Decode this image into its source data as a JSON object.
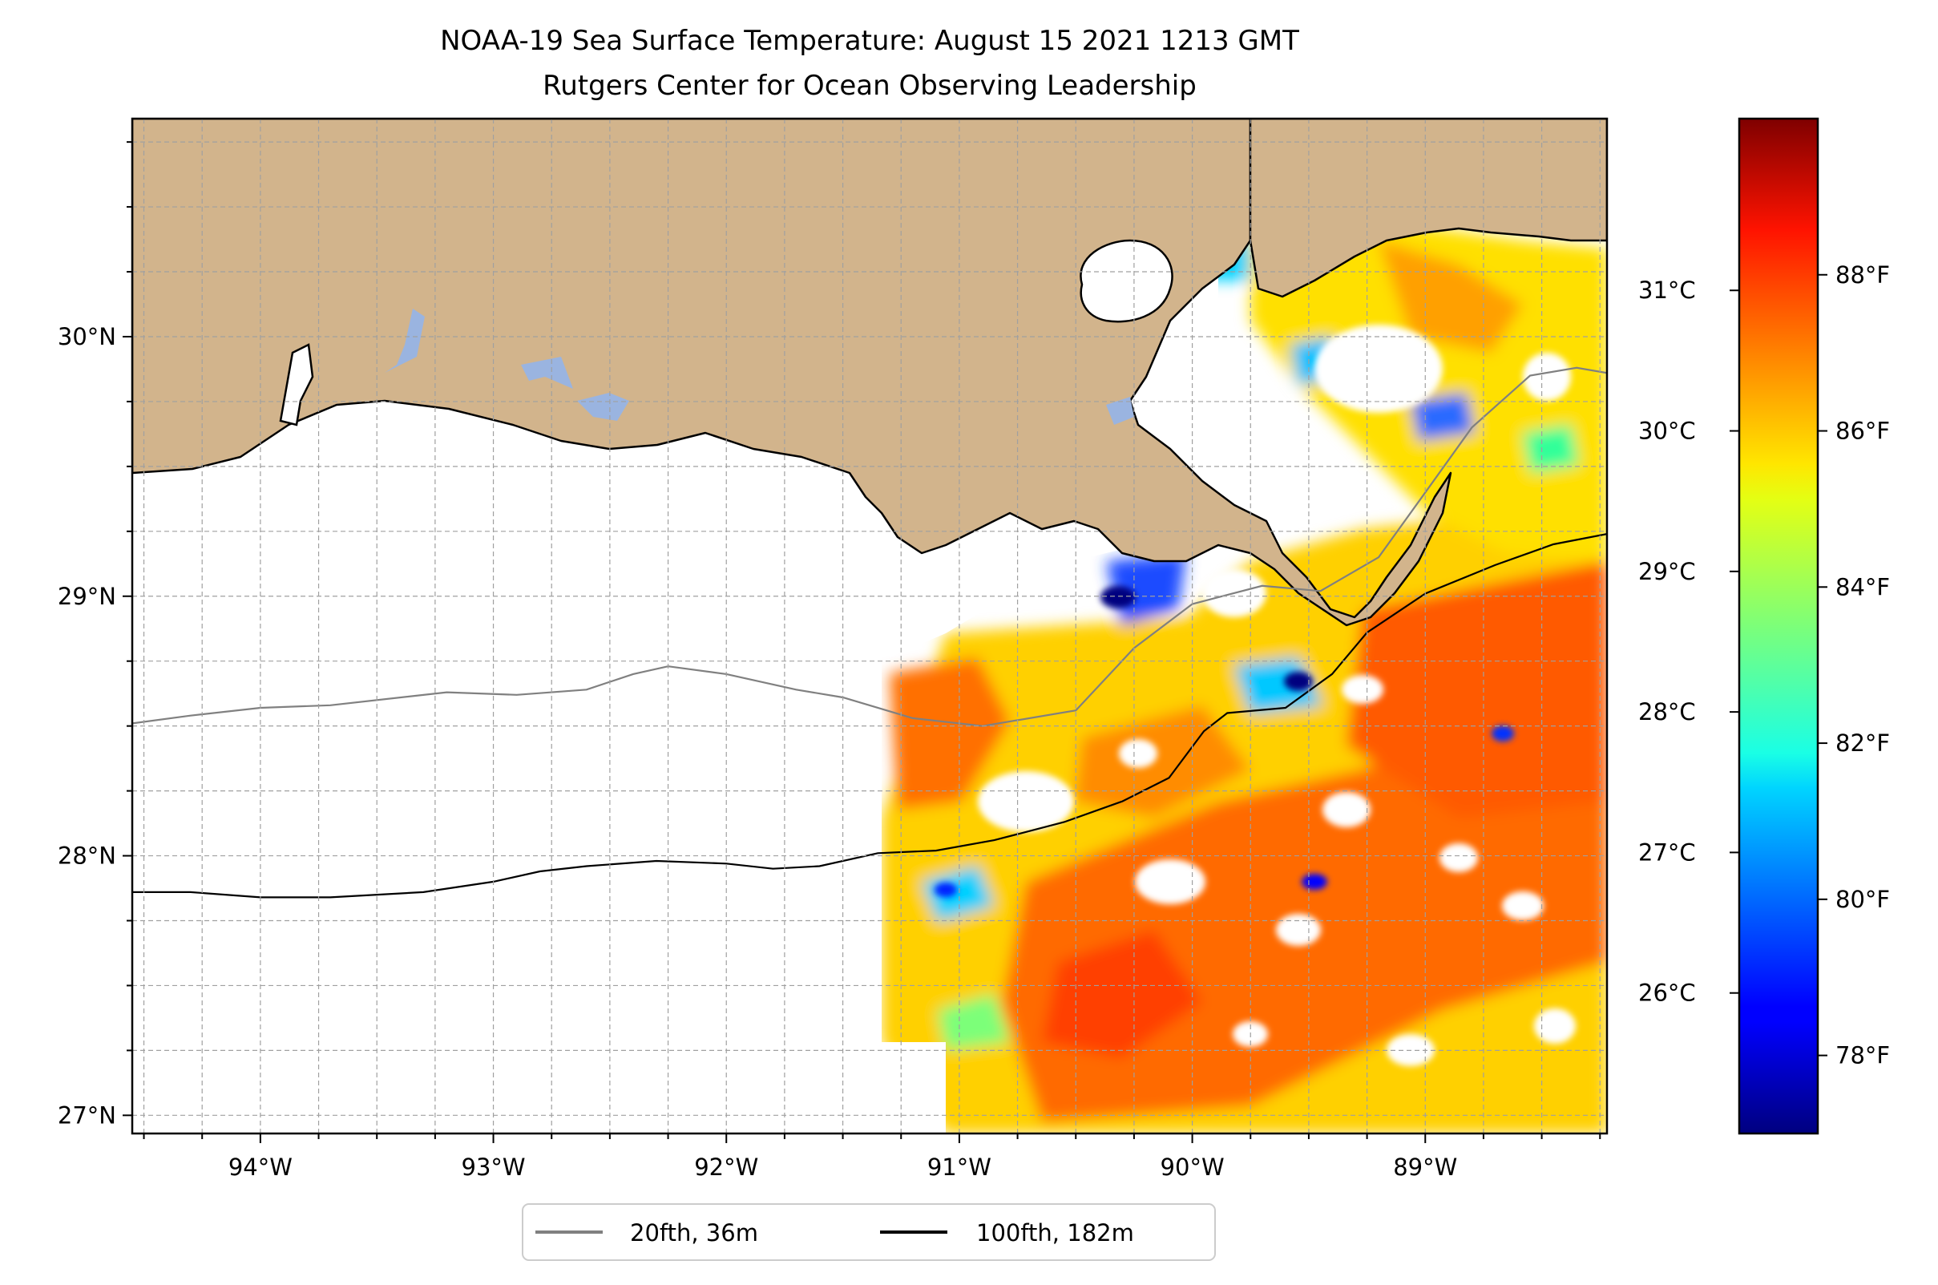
{
  "title": {
    "line1": "NOAA-19 Sea Surface Temperature: August 15 2021 1213 GMT",
    "line2": "Rutgers Center for Ocean Observing Leadership"
  },
  "map": {
    "lon_range": [
      -94.55,
      -88.22
    ],
    "lat_range": [
      26.93,
      30.84
    ],
    "grid": true,
    "land_color": "#d2b48c",
    "lake_color": "#9ab4e0",
    "x_ticks": [
      {
        "value": -94,
        "label": "94°W"
      },
      {
        "value": -93,
        "label": "93°W"
      },
      {
        "value": -92,
        "label": "92°W"
      },
      {
        "value": -91,
        "label": "91°W"
      },
      {
        "value": -90,
        "label": "90°W"
      },
      {
        "value": -89,
        "label": "89°W"
      }
    ],
    "y_ticks": [
      {
        "value": 27,
        "label": "27°N"
      },
      {
        "value": 28,
        "label": "28°N"
      },
      {
        "value": 29,
        "label": "29°N"
      },
      {
        "value": 30,
        "label": "30°N"
      }
    ]
  },
  "colorbar": {
    "colormap": "jet",
    "range_f": [
      77.0,
      90.0
    ],
    "celsius_ticks": [
      {
        "value": 26,
        "label": "26°C"
      },
      {
        "value": 27,
        "label": "27°C"
      },
      {
        "value": 28,
        "label": "28°C"
      },
      {
        "value": 29,
        "label": "29°C"
      },
      {
        "value": 30,
        "label": "30°C"
      },
      {
        "value": 31,
        "label": "31°C"
      }
    ],
    "fahrenheit_ticks": [
      {
        "value": 78,
        "label": "78°F"
      },
      {
        "value": 80,
        "label": "80°F"
      },
      {
        "value": 82,
        "label": "82°F"
      },
      {
        "value": 84,
        "label": "84°F"
      },
      {
        "value": 86,
        "label": "86°F"
      },
      {
        "value": 88,
        "label": "88°F"
      }
    ]
  },
  "legend": {
    "location": "below map",
    "entries": [
      {
        "label": "20fth, 36m",
        "color": "#808080"
      },
      {
        "label": "100fth, 182m",
        "color": "#000000"
      }
    ]
  },
  "contours": {
    "isobath_20fth": [
      [
        -94.55,
        28.51
      ],
      [
        -94.3,
        28.54
      ],
      [
        -94.0,
        28.57
      ],
      [
        -93.7,
        28.58
      ],
      [
        -93.2,
        28.63
      ],
      [
        -92.9,
        28.62
      ],
      [
        -92.6,
        28.64
      ],
      [
        -92.4,
        28.7
      ],
      [
        -92.25,
        28.73
      ],
      [
        -92.0,
        28.7
      ],
      [
        -91.7,
        28.64
      ],
      [
        -91.5,
        28.61
      ],
      [
        -91.2,
        28.53
      ],
      [
        -90.9,
        28.5
      ],
      [
        -90.5,
        28.56
      ],
      [
        -90.25,
        28.8
      ],
      [
        -90.0,
        28.97
      ],
      [
        -89.7,
        29.04
      ],
      [
        -89.45,
        29.02
      ],
      [
        -89.2,
        29.15
      ],
      [
        -89.0,
        29.4
      ],
      [
        -88.8,
        29.65
      ],
      [
        -88.55,
        29.85
      ],
      [
        -88.35,
        29.88
      ],
      [
        -88.22,
        29.86
      ]
    ],
    "isobath_100fth": [
      [
        -94.55,
        27.86
      ],
      [
        -94.3,
        27.86
      ],
      [
        -94.0,
        27.84
      ],
      [
        -93.7,
        27.84
      ],
      [
        -93.3,
        27.86
      ],
      [
        -93.0,
        27.9
      ],
      [
        -92.8,
        27.94
      ],
      [
        -92.6,
        27.96
      ],
      [
        -92.3,
        27.98
      ],
      [
        -92.0,
        27.97
      ],
      [
        -91.8,
        27.95
      ],
      [
        -91.6,
        27.96
      ],
      [
        -91.35,
        28.01
      ],
      [
        -91.1,
        28.02
      ],
      [
        -90.85,
        28.06
      ],
      [
        -90.55,
        28.13
      ],
      [
        -90.3,
        28.21
      ],
      [
        -90.1,
        28.3
      ],
      [
        -89.95,
        28.48
      ],
      [
        -89.85,
        28.55
      ],
      [
        -89.6,
        28.57
      ],
      [
        -89.4,
        28.7
      ],
      [
        -89.25,
        28.86
      ],
      [
        -89.0,
        29.01
      ],
      [
        -88.7,
        29.12
      ],
      [
        -88.45,
        29.2
      ],
      [
        -88.22,
        29.24
      ]
    ]
  }
}
